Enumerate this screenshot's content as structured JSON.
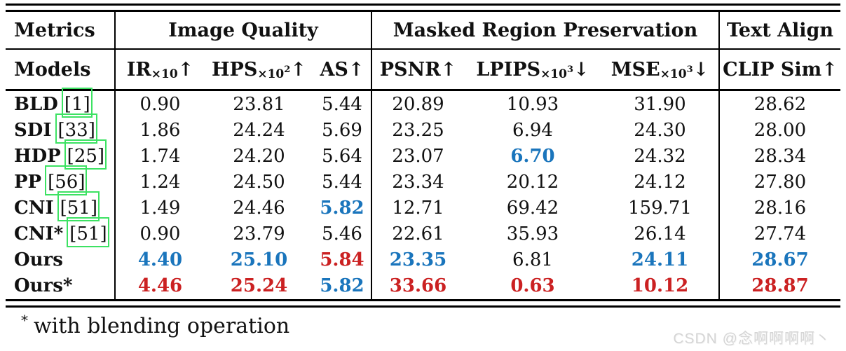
{
  "table": {
    "group_headers": [
      "Metrics",
      "Image Quality",
      "Masked Region Preservation",
      "Text Align"
    ],
    "models_header": "Models",
    "columns": [
      {
        "name": "IR",
        "sub": "×10",
        "exp": "",
        "arrow": "↑"
      },
      {
        "name": "HPS",
        "sub": "×10",
        "exp": "2",
        "arrow": "↑"
      },
      {
        "name": "AS",
        "sub": "",
        "exp": "",
        "arrow": "↑"
      },
      {
        "name": "PSNR",
        "sub": "",
        "exp": "",
        "arrow": "↑"
      },
      {
        "name": "LPIPS",
        "sub": "×10",
        "exp": "3",
        "arrow": "↓"
      },
      {
        "name": "MSE",
        "sub": "×10",
        "exp": "3",
        "arrow": "↓"
      },
      {
        "name": "CLIP Sim",
        "sub": "",
        "exp": "",
        "arrow": "↑"
      }
    ],
    "rows": [
      {
        "model": "BLD",
        "cite": "[1]",
        "values": [
          "0.90",
          "23.81",
          "5.44",
          "20.89",
          "10.93",
          "31.90",
          "28.62"
        ],
        "colors": [
          "k",
          "k",
          "k",
          "k",
          "k",
          "k",
          "k"
        ]
      },
      {
        "model": "SDI",
        "cite": "[33]",
        "values": [
          "1.86",
          "24.24",
          "5.69",
          "23.25",
          "6.94",
          "24.30",
          "28.00"
        ],
        "colors": [
          "k",
          "k",
          "k",
          "k",
          "k",
          "k",
          "k"
        ]
      },
      {
        "model": "HDP",
        "cite": "[25]",
        "values": [
          "1.74",
          "24.20",
          "5.64",
          "23.07",
          "6.70",
          "24.32",
          "28.34"
        ],
        "colors": [
          "k",
          "k",
          "k",
          "k",
          "b",
          "k",
          "k"
        ]
      },
      {
        "model": "PP",
        "cite": "[56]",
        "values": [
          "1.24",
          "24.50",
          "5.44",
          "23.34",
          "20.12",
          "24.12",
          "27.80"
        ],
        "colors": [
          "k",
          "k",
          "k",
          "k",
          "k",
          "k",
          "k"
        ]
      },
      {
        "model": "CNI",
        "cite": "[51]",
        "values": [
          "1.49",
          "24.46",
          "5.82",
          "12.71",
          "69.42",
          "159.71",
          "28.16"
        ],
        "colors": [
          "k",
          "k",
          "b",
          "k",
          "k",
          "k",
          "k"
        ]
      },
      {
        "model": "CNI*",
        "cite": "[51]",
        "values": [
          "0.90",
          "23.79",
          "5.46",
          "22.61",
          "35.93",
          "26.14",
          "27.74"
        ],
        "colors": [
          "k",
          "k",
          "k",
          "k",
          "k",
          "k",
          "k"
        ]
      },
      {
        "model": "Ours",
        "cite": "",
        "values": [
          "4.40",
          "25.10",
          "5.84",
          "23.35",
          "6.81",
          "24.11",
          "28.67"
        ],
        "colors": [
          "b",
          "b",
          "r",
          "b",
          "k",
          "b",
          "b"
        ]
      },
      {
        "model": "Ours*",
        "cite": "",
        "values": [
          "4.46",
          "25.24",
          "5.82",
          "33.66",
          "0.63",
          "10.12",
          "28.87"
        ],
        "colors": [
          "r",
          "r",
          "b",
          "r",
          "r",
          "r",
          "r"
        ]
      }
    ]
  },
  "footnote": {
    "marker": "*",
    "text": "with blending operation"
  },
  "watermark": "CSDN @念啊啊啊啊丶",
  "colors": {
    "text": "#111111",
    "highlight_blue": "#1a75bc",
    "highlight_red": "#cb2122",
    "link_box_green": "#3de263",
    "rule_black": "#000000",
    "watermark_gray": "#d5d5d5"
  }
}
